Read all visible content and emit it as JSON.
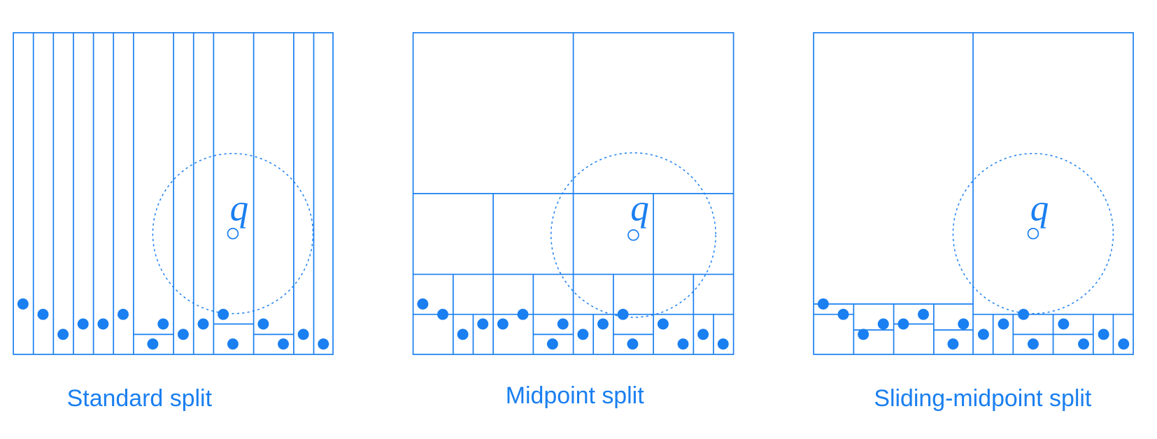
{
  "panels": [
    {
      "caption": "Standard split",
      "query_label": "q"
    },
    {
      "caption": "Midpoint split",
      "query_label": "q"
    },
    {
      "caption": "Sliding-midpoint split",
      "query_label": "q"
    }
  ]
}
